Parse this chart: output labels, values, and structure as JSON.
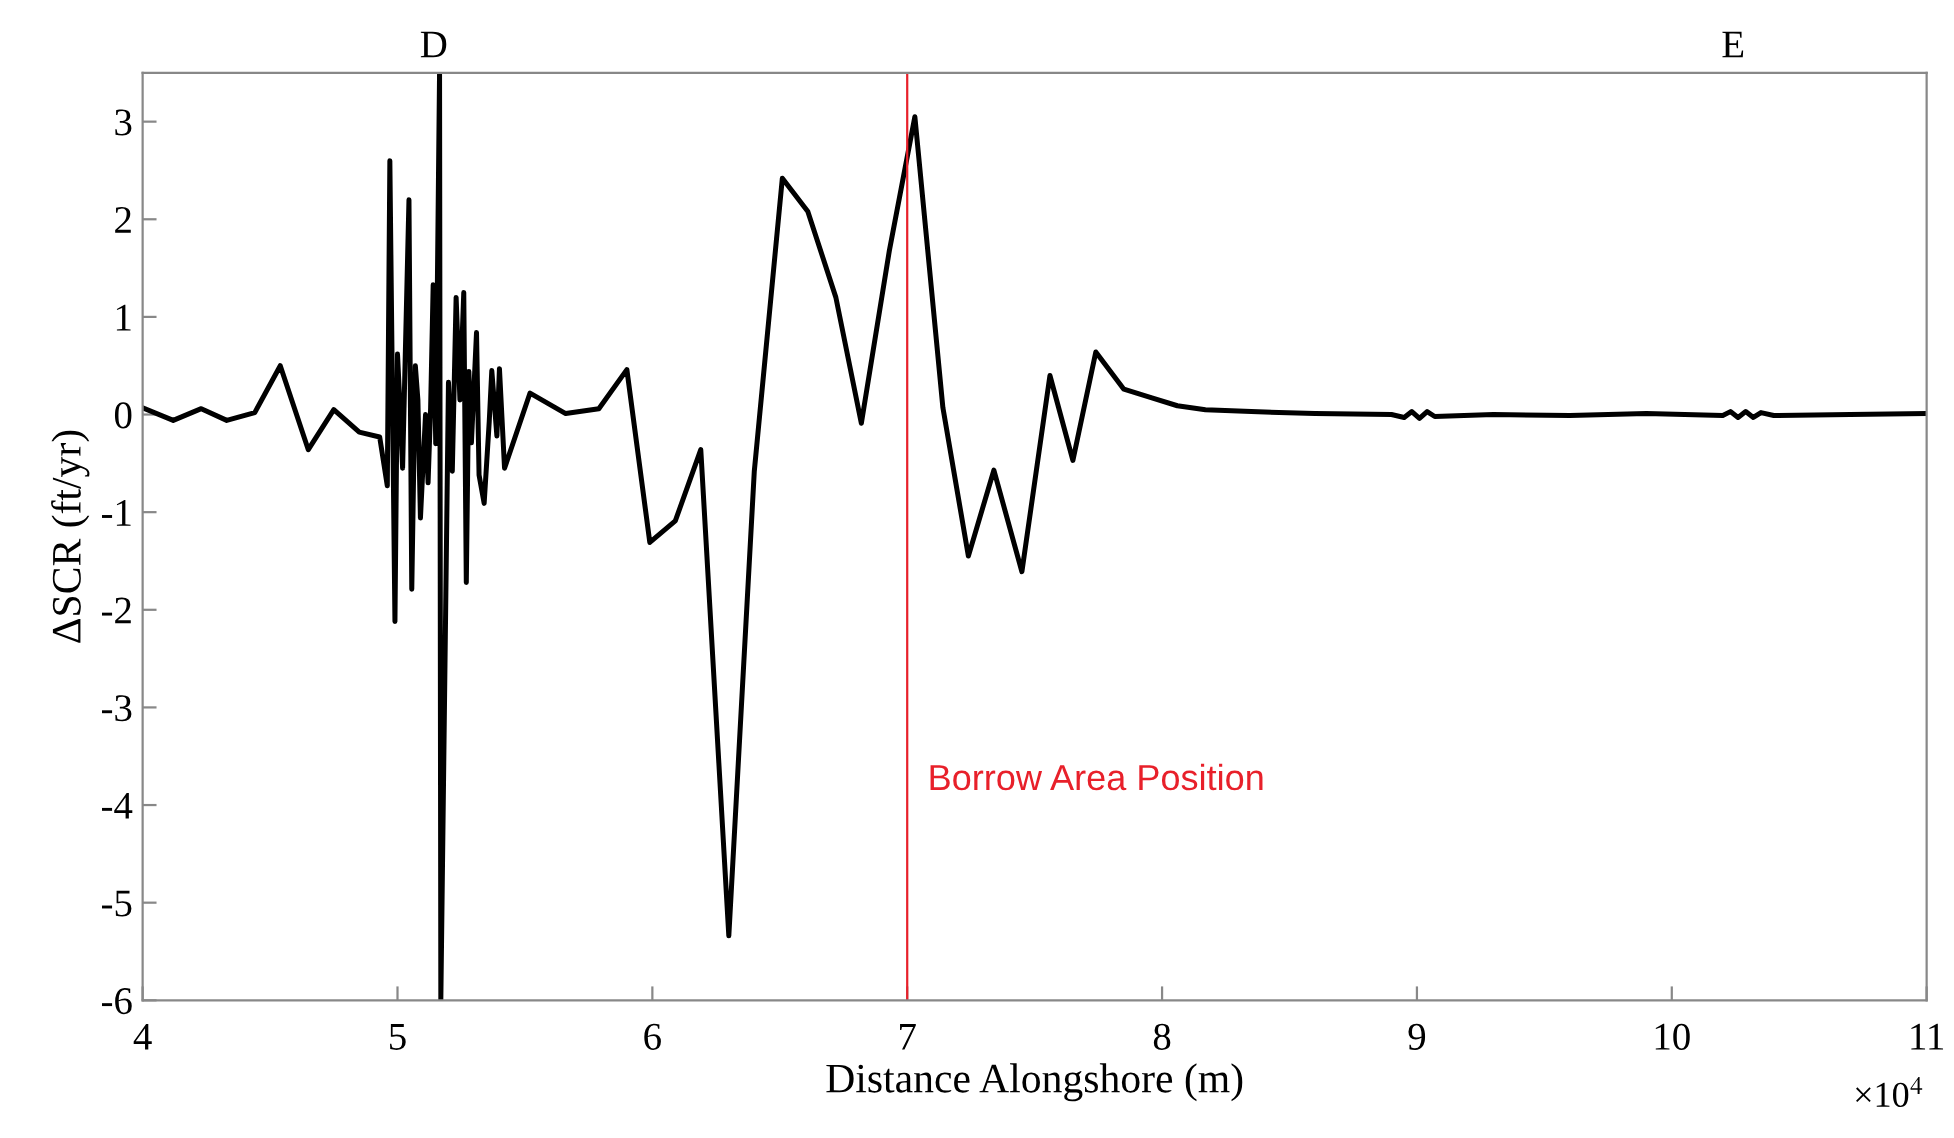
{
  "chart_data": {
    "type": "line",
    "xlabel": "Distance Alongshore (m)",
    "ylabel": "ΔSCR (ft/yr)",
    "x": [
      4.0,
      4.12,
      4.23,
      4.33,
      4.44,
      4.54,
      4.65,
      4.75,
      4.85,
      4.93,
      4.96,
      4.97,
      4.99,
      5.0,
      5.01,
      5.02,
      5.045,
      5.056,
      5.07,
      5.08,
      5.09,
      5.11,
      5.12,
      5.13,
      5.14,
      5.15,
      5.165,
      5.17,
      5.2,
      5.215,
      5.23,
      5.245,
      5.26,
      5.27,
      5.28,
      5.29,
      5.31,
      5.32,
      5.34,
      5.36,
      5.37,
      5.39,
      5.4,
      5.42,
      5.52,
      5.66,
      5.79,
      5.9,
      5.99,
      6.09,
      6.19,
      6.3,
      6.4,
      6.51,
      6.61,
      6.72,
      6.82,
      6.93,
      7.03,
      7.14,
      7.24,
      7.34,
      7.45,
      7.56,
      7.65,
      7.74,
      7.85,
      7.96,
      8.06,
      8.17,
      8.35,
      8.6,
      8.9,
      8.95,
      8.98,
      9.01,
      9.04,
      9.07,
      9.3,
      9.6,
      9.9,
      10.2,
      10.23,
      10.26,
      10.29,
      10.32,
      10.35,
      10.4,
      10.7,
      11.0
    ],
    "series": [
      {
        "color": "#000000",
        "values": [
          0.07,
          -0.06,
          0.06,
          -0.06,
          0.02,
          0.5,
          -0.36,
          0.05,
          -0.18,
          -0.23,
          -0.73,
          2.6,
          -2.12,
          0.62,
          0.07,
          -0.55,
          2.2,
          -1.79,
          0.5,
          0.15,
          -1.06,
          0.0,
          -0.7,
          0.07,
          1.33,
          -0.3,
          3.5,
          -6.0,
          0.33,
          -0.58,
          1.2,
          0.15,
          1.25,
          -1.72,
          0.44,
          -0.29,
          0.84,
          -0.62,
          -0.91,
          -0.07,
          0.45,
          -0.22,
          0.47,
          -0.55,
          0.22,
          0.01,
          0.06,
          0.46,
          -1.31,
          -1.09,
          -0.36,
          -5.34,
          -0.58,
          2.42,
          2.08,
          1.2,
          -0.09,
          1.68,
          3.05,
          0.07,
          -1.45,
          -0.57,
          -1.61,
          0.4,
          -0.47,
          0.64,
          0.26,
          0.17,
          0.09,
          0.05,
          0.03,
          0.01,
          0.0,
          -0.03,
          0.03,
          -0.04,
          0.03,
          -0.02,
          0.0,
          -0.01,
          0.01,
          -0.01,
          0.03,
          -0.03,
          0.03,
          -0.03,
          0.02,
          -0.01,
          0.0,
          0.01
        ]
      }
    ],
    "xlim": [
      4,
      11
    ],
    "xticks": [
      4,
      5,
      6,
      7,
      8,
      9,
      10,
      11
    ],
    "ylim": [
      -6,
      3.5
    ],
    "yticks": [
      -6,
      -5,
      -4,
      -3,
      -2,
      -1,
      0,
      1,
      2,
      3
    ],
    "ref_lines": [
      {
        "axis": "x",
        "value": 7.0,
        "label": "Borrow Area Position",
        "color": "#e8202a"
      }
    ],
    "annotations": [
      "×10$^{4}$",
      "D",
      "E"
    ],
    "grid": false,
    "legend": false,
    "marker": "none",
    "line_style": "solid"
  }
}
